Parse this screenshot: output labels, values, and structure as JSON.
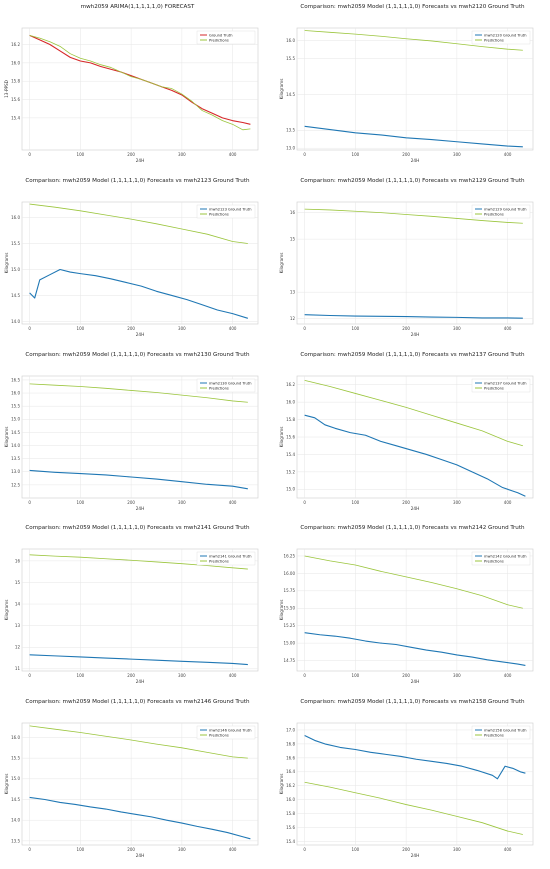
{
  "colors": {
    "ground_truth_blue": "#1f77b4",
    "ground_truth_red": "#d62728",
    "predictions": "#9bc53d",
    "grid": "#e6e6e6",
    "frame": "#cccccc"
  },
  "chart_data": [
    {
      "type": "line",
      "title": "mwh2059 ARIMA(1,1,1,1,1,0) FORECAST",
      "xlabel": "24H",
      "ylabel": "13-PPSD",
      "xlim": [
        -15,
        450
      ],
      "ylim": [
        15.05,
        16.38
      ],
      "xticks": [
        0,
        100,
        200,
        300,
        400
      ],
      "yticks": [
        15.4,
        15.6,
        15.8,
        16.0,
        16.2
      ],
      "ytick_labels": [
        "15.4",
        "15.6",
        "15.8",
        "16.0",
        "16.2"
      ],
      "legend": "top-right",
      "gt_color": "red",
      "series": [
        {
          "name": "Ground Truth",
          "x": [
            0,
            20,
            40,
            60,
            80,
            100,
            120,
            140,
            160,
            180,
            200,
            220,
            240,
            260,
            280,
            300,
            320,
            340,
            360,
            380,
            400,
            420,
            435
          ],
          "values": [
            16.3,
            16.25,
            16.2,
            16.13,
            16.06,
            16.02,
            16.0,
            15.96,
            15.93,
            15.9,
            15.86,
            15.82,
            15.78,
            15.74,
            15.7,
            15.65,
            15.57,
            15.5,
            15.45,
            15.4,
            15.37,
            15.35,
            15.33
          ]
        },
        {
          "name": "Predictions",
          "x": [
            0,
            20,
            40,
            60,
            80,
            100,
            120,
            140,
            160,
            180,
            200,
            220,
            240,
            260,
            280,
            300,
            320,
            340,
            360,
            380,
            400,
            420,
            435
          ],
          "values": [
            16.3,
            16.27,
            16.23,
            16.18,
            16.1,
            16.05,
            16.02,
            15.98,
            15.95,
            15.9,
            15.85,
            15.82,
            15.78,
            15.74,
            15.72,
            15.66,
            15.58,
            15.48,
            15.43,
            15.37,
            15.33,
            15.27,
            15.28
          ]
        }
      ]
    },
    {
      "type": "line",
      "title": "Comparison: mwh2059 Model (1,1,1,1,1,0) Forecasts vs mwh2120 Ground Truth",
      "xlabel": "24H",
      "ylabel": "Kilograms",
      "xlim": [
        -15,
        450
      ],
      "ylim": [
        12.95,
        16.35
      ],
      "xticks": [
        0,
        100,
        200,
        300,
        400
      ],
      "yticks": [
        13.0,
        13.5,
        14.5,
        15.5,
        16.0
      ],
      "ytick_labels": [
        "13.0",
        "13.5",
        "14.5",
        "15.5",
        "16.0"
      ],
      "legend": "top-right",
      "gt_color": "blue",
      "series": [
        {
          "name": "mwh2120 Ground Truth",
          "x": [
            0,
            50,
            100,
            150,
            200,
            250,
            300,
            350,
            400,
            430
          ],
          "values": [
            13.61,
            13.52,
            13.43,
            13.37,
            13.29,
            13.24,
            13.18,
            13.12,
            13.06,
            13.04
          ]
        },
        {
          "name": "Predictions",
          "x": [
            0,
            50,
            100,
            150,
            200,
            250,
            300,
            350,
            400,
            430
          ],
          "values": [
            16.28,
            16.23,
            16.18,
            16.12,
            16.05,
            15.99,
            15.91,
            15.83,
            15.76,
            15.73
          ]
        }
      ]
    },
    {
      "type": "line",
      "title": "Comparison: mwh2059 Model (1,1,1,1,1,0) Forecasts vs mwh2123 Ground Truth",
      "xlabel": "24H",
      "ylabel": "Kilograms",
      "xlim": [
        -15,
        450
      ],
      "ylim": [
        13.95,
        16.3
      ],
      "xticks": [
        0,
        100,
        200,
        300,
        400
      ],
      "yticks": [
        14.0,
        14.5,
        15.0,
        15.5,
        16.0
      ],
      "ytick_labels": [
        "14.0",
        "14.5",
        "15.0",
        "15.5",
        "16.0"
      ],
      "legend": "top-right",
      "gt_color": "blue",
      "series": [
        {
          "name": "mwh2123 Ground Truth",
          "x": [
            0,
            10,
            20,
            40,
            60,
            80,
            100,
            130,
            160,
            190,
            220,
            250,
            280,
            310,
            340,
            370,
            400,
            430
          ],
          "values": [
            14.55,
            14.45,
            14.8,
            14.9,
            15.0,
            14.95,
            14.92,
            14.88,
            14.82,
            14.75,
            14.68,
            14.58,
            14.5,
            14.42,
            14.32,
            14.22,
            14.15,
            14.06
          ]
        },
        {
          "name": "Predictions",
          "x": [
            0,
            50,
            100,
            150,
            200,
            250,
            300,
            350,
            400,
            430
          ],
          "values": [
            16.26,
            16.2,
            16.13,
            16.05,
            15.97,
            15.88,
            15.78,
            15.68,
            15.54,
            15.5
          ]
        }
      ]
    },
    {
      "type": "line",
      "title": "Comparison: mwh2059 Model (1,1,1,1,1,0) Forecasts vs mwh2129 Ground Truth",
      "xlabel": "24H",
      "ylabel": "Kilograms",
      "xlim": [
        -15,
        450
      ],
      "ylim": [
        11.8,
        16.4
      ],
      "xticks": [
        0,
        100,
        200,
        300,
        400
      ],
      "yticks": [
        12,
        13,
        15,
        16
      ],
      "ytick_labels": [
        "12",
        "13",
        "15",
        "16"
      ],
      "legend": "top-right",
      "gt_color": "blue",
      "series": [
        {
          "name": "mwh2129 Ground Truth",
          "x": [
            0,
            50,
            100,
            150,
            200,
            250,
            300,
            350,
            400,
            430
          ],
          "values": [
            12.15,
            12.12,
            12.1,
            12.09,
            12.08,
            12.06,
            12.05,
            12.03,
            12.03,
            12.02
          ]
        },
        {
          "name": "Predictions",
          "x": [
            0,
            50,
            100,
            150,
            200,
            250,
            300,
            350,
            400,
            430
          ],
          "values": [
            16.13,
            16.1,
            16.05,
            16.0,
            15.93,
            15.86,
            15.78,
            15.7,
            15.63,
            15.6
          ]
        }
      ]
    },
    {
      "type": "line",
      "title": "Comparison: mwh2059 Model (1,1,1,1,1,0) Forecasts vs mwh2130 Ground Truth",
      "xlabel": "24H",
      "ylabel": "Kilograms",
      "xlim": [
        -15,
        450
      ],
      "ylim": [
        12.0,
        16.65
      ],
      "xticks": [
        0,
        100,
        200,
        300,
        400
      ],
      "yticks": [
        12.5,
        13.0,
        13.5,
        14.0,
        14.5,
        15.0,
        15.5,
        16.0,
        16.5
      ],
      "ytick_labels": [
        "12.5",
        "13.0",
        "13.5",
        "14.0",
        "14.5",
        "15.0",
        "15.5",
        "16.0",
        "16.5"
      ],
      "legend": "top-right",
      "gt_color": "blue",
      "series": [
        {
          "name": "mwh2130 Ground Truth",
          "x": [
            0,
            50,
            100,
            150,
            200,
            250,
            300,
            350,
            400,
            430
          ],
          "values": [
            13.05,
            12.98,
            12.93,
            12.88,
            12.8,
            12.72,
            12.62,
            12.52,
            12.45,
            12.35
          ]
        },
        {
          "name": "Predictions",
          "x": [
            0,
            50,
            100,
            150,
            200,
            250,
            300,
            350,
            400,
            430
          ],
          "values": [
            16.35,
            16.3,
            16.25,
            16.18,
            16.1,
            16.02,
            15.92,
            15.82,
            15.7,
            15.65
          ]
        }
      ]
    },
    {
      "type": "line",
      "title": "Comparison: mwh2059 Model (1,1,1,1,1,0) Forecasts vs mwh2137 Ground Truth",
      "xlabel": "24H",
      "ylabel": "Kilograms",
      "xlim": [
        -15,
        450
      ],
      "ylim": [
        14.9,
        16.3
      ],
      "xticks": [
        0,
        100,
        200,
        300,
        400
      ],
      "yticks": [
        15.0,
        15.2,
        15.4,
        15.6,
        15.8,
        16.0,
        16.2
      ],
      "ytick_labels": [
        "15.0",
        "15.2",
        "15.4",
        "15.6",
        "15.8",
        "16.0",
        "16.2"
      ],
      "legend": "top-right",
      "gt_color": "blue",
      "series": [
        {
          "name": "mwh2137 Ground Truth",
          "x": [
            0,
            20,
            40,
            60,
            90,
            120,
            150,
            180,
            210,
            240,
            270,
            300,
            330,
            360,
            390,
            420,
            435
          ],
          "values": [
            15.85,
            15.82,
            15.74,
            15.7,
            15.65,
            15.62,
            15.55,
            15.5,
            15.45,
            15.4,
            15.34,
            15.28,
            15.2,
            15.12,
            15.02,
            14.96,
            14.92
          ]
        },
        {
          "name": "Predictions",
          "x": [
            0,
            50,
            100,
            150,
            200,
            250,
            300,
            350,
            400,
            430
          ],
          "values": [
            16.25,
            16.18,
            16.1,
            16.02,
            15.94,
            15.85,
            15.76,
            15.67,
            15.55,
            15.5
          ]
        }
      ]
    },
    {
      "type": "line",
      "title": "Comparison: mwh2059 Model (1,1,1,1,1,0) Forecasts vs mwh2141 Ground Truth",
      "xlabel": "24H",
      "ylabel": "Kilograms",
      "xlim": [
        -15,
        450
      ],
      "ylim": [
        10.9,
        16.55
      ],
      "xticks": [
        0,
        100,
        200,
        300,
        400
      ],
      "yticks": [
        11,
        12,
        13,
        14,
        15,
        16
      ],
      "ytick_labels": [
        "11",
        "12",
        "13",
        "14",
        "15",
        "16"
      ],
      "legend": "top-right",
      "gt_color": "blue",
      "series": [
        {
          "name": "mwh2141 Ground Truth",
          "x": [
            0,
            50,
            100,
            150,
            200,
            250,
            300,
            350,
            400,
            430
          ],
          "values": [
            11.65,
            11.6,
            11.55,
            11.5,
            11.45,
            11.4,
            11.35,
            11.3,
            11.25,
            11.2
          ]
        },
        {
          "name": "Predictions",
          "x": [
            0,
            50,
            100,
            150,
            200,
            250,
            300,
            350,
            400,
            430
          ],
          "values": [
            16.28,
            16.22,
            16.17,
            16.1,
            16.03,
            15.95,
            15.87,
            15.78,
            15.68,
            15.62
          ]
        }
      ]
    },
    {
      "type": "line",
      "title": "Comparison: mwh2059 Model (1,1,1,1,1,0) Forecasts vs mwh2142 Ground Truth",
      "xlabel": "24H",
      "ylabel": "Kilograms",
      "xlim": [
        -15,
        450
      ],
      "ylim": [
        14.6,
        16.35
      ],
      "xticks": [
        0,
        100,
        200,
        300,
        400
      ],
      "yticks": [
        14.75,
        15.0,
        15.25,
        15.5,
        15.75,
        16.0,
        16.25
      ],
      "ytick_labels": [
        "14.75",
        "15.00",
        "15.25",
        "15.50",
        "15.75",
        "16.00",
        "16.25"
      ],
      "legend": "top-right",
      "gt_color": "blue",
      "series": [
        {
          "name": "mwh2142 Ground Truth",
          "x": [
            0,
            30,
            60,
            90,
            120,
            150,
            180,
            210,
            240,
            270,
            300,
            330,
            360,
            390,
            420,
            435
          ],
          "values": [
            15.15,
            15.12,
            15.1,
            15.07,
            15.03,
            15.0,
            14.98,
            14.94,
            14.9,
            14.87,
            14.83,
            14.8,
            14.76,
            14.73,
            14.7,
            14.68
          ]
        },
        {
          "name": "Predictions",
          "x": [
            0,
            50,
            100,
            150,
            200,
            250,
            300,
            350,
            400,
            430
          ],
          "values": [
            16.25,
            16.18,
            16.12,
            16.03,
            15.95,
            15.87,
            15.78,
            15.68,
            15.55,
            15.5
          ]
        }
      ]
    },
    {
      "type": "line",
      "title": "Comparison: mwh2059 Model (1,1,1,1,1,0) Forecasts vs mwh2146 Ground Truth",
      "xlabel": "24H",
      "ylabel": "Kilograms",
      "xlim": [
        -15,
        450
      ],
      "ylim": [
        13.4,
        16.35
      ],
      "xticks": [
        0,
        100,
        200,
        300,
        400
      ],
      "yticks": [
        13.5,
        14.0,
        14.5,
        15.0,
        15.5,
        16.0
      ],
      "ytick_labels": [
        "13.5",
        "14.0",
        "14.5",
        "15.0",
        "15.5",
        "16.0"
      ],
      "legend": "top-right",
      "gt_color": "blue",
      "series": [
        {
          "name": "mwh2146 Ground Truth",
          "x": [
            0,
            30,
            60,
            90,
            120,
            150,
            180,
            210,
            240,
            270,
            300,
            330,
            360,
            390,
            420,
            435
          ],
          "values": [
            14.55,
            14.5,
            14.43,
            14.38,
            14.32,
            14.27,
            14.2,
            14.14,
            14.08,
            14.0,
            13.93,
            13.85,
            13.78,
            13.7,
            13.6,
            13.55
          ]
        },
        {
          "name": "Predictions",
          "x": [
            0,
            50,
            100,
            150,
            200,
            250,
            300,
            350,
            400,
            430
          ],
          "values": [
            16.28,
            16.2,
            16.12,
            16.03,
            15.94,
            15.84,
            15.75,
            15.64,
            15.53,
            15.5
          ]
        }
      ]
    },
    {
      "type": "line",
      "title": "Comparison: mwh2059 Model (1,1,1,1,1,0) Forecasts vs mwh2158 Ground Truth",
      "xlabel": "24H",
      "ylabel": "Kilograms",
      "xlim": [
        -15,
        450
      ],
      "ylim": [
        15.35,
        17.1
      ],
      "xticks": [
        0,
        100,
        200,
        300,
        400
      ],
      "yticks": [
        15.4,
        15.6,
        15.8,
        16.0,
        16.2,
        16.4,
        16.6,
        16.8,
        17.0
      ],
      "ytick_labels": [
        "15.4",
        "15.6",
        "15.8",
        "16.0",
        "16.2",
        "16.4",
        "16.6",
        "16.8",
        "17.0"
      ],
      "legend": "top-right",
      "gt_color": "blue",
      "series": [
        {
          "name": "mwh2158 Ground Truth",
          "x": [
            0,
            20,
            40,
            70,
            100,
            130,
            160,
            190,
            220,
            250,
            280,
            310,
            340,
            370,
            380,
            395,
            410,
            425,
            435
          ],
          "values": [
            16.92,
            16.85,
            16.8,
            16.75,
            16.72,
            16.68,
            16.65,
            16.62,
            16.58,
            16.55,
            16.52,
            16.48,
            16.42,
            16.35,
            16.3,
            16.48,
            16.45,
            16.4,
            16.38
          ]
        },
        {
          "name": "Predictions",
          "x": [
            0,
            50,
            100,
            150,
            200,
            250,
            300,
            350,
            400,
            430
          ],
          "values": [
            16.25,
            16.18,
            16.1,
            16.02,
            15.93,
            15.85,
            15.76,
            15.67,
            15.55,
            15.5
          ]
        }
      ]
    }
  ]
}
